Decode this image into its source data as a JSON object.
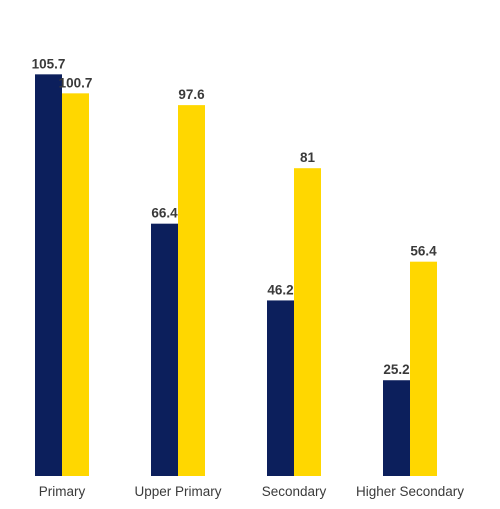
{
  "chart_data": {
    "type": "bar",
    "title": "",
    "xlabel": "",
    "ylabel": "",
    "categories": [
      "Primary",
      "Upper Primary",
      "Secondary",
      "Higher Secondary"
    ],
    "series": [
      {
        "values": [
          105.7,
          66.4,
          46.2,
          25.2
        ],
        "color": "#0c1f5c"
      },
      {
        "values": [
          100.7,
          97.6,
          81,
          56.4
        ],
        "color": "#ffd700"
      }
    ],
    "value_labels": [
      [
        "105.7",
        "66.4",
        "46.2",
        "25.2"
      ],
      [
        "100.7",
        "97.6",
        "81",
        "56.4"
      ]
    ],
    "ylim": [
      0,
      110
    ],
    "grid": false,
    "legend": "none"
  }
}
